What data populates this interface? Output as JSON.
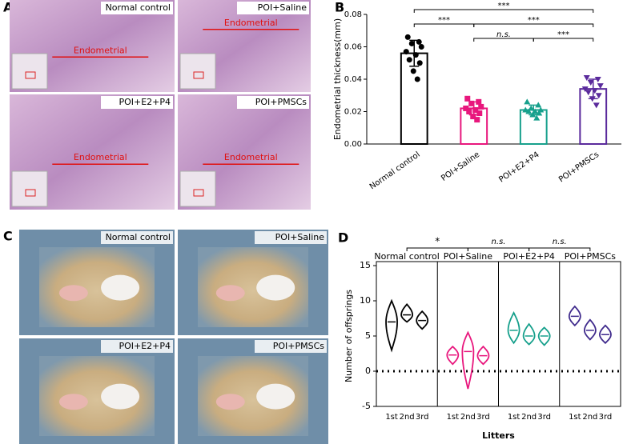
{
  "panels": {
    "A": {
      "label": "A",
      "images": [
        {
          "title": "Normal control",
          "annotation": "Endometrial"
        },
        {
          "title": "POI+Saline",
          "annotation": "Endometrial"
        },
        {
          "title": "POI+E2+P4",
          "annotation": "Endometrial"
        },
        {
          "title": "POI+PMSCs",
          "annotation": "Endometrial"
        }
      ]
    },
    "C": {
      "label": "C",
      "images": [
        {
          "title": "Normal control"
        },
        {
          "title": "POI+Saline"
        },
        {
          "title": "POI+E2+P4"
        },
        {
          "title": "POI+PMSCs"
        }
      ]
    }
  },
  "chart_data": [
    {
      "panel_label": "B",
      "type": "bar",
      "ylabel": "Endometrial thickness(mm)",
      "categories": [
        "Normal control",
        "POI+Saline",
        "POI+E2+P4",
        "POI+PMSCs"
      ],
      "values": [
        0.056,
        0.022,
        0.021,
        0.034
      ],
      "errors": [
        0.008,
        0.004,
        0.003,
        0.006
      ],
      "colors": [
        "#000000",
        "#e8177d",
        "#17a08c",
        "#5a2a9c"
      ],
      "markers": [
        "circle",
        "square",
        "triangle",
        "triangle-down"
      ],
      "points": [
        [
          0.066,
          0.063,
          0.062,
          0.06,
          0.057,
          0.055,
          0.052,
          0.05,
          0.045,
          0.04
        ],
        [
          0.028,
          0.026,
          0.025,
          0.023,
          0.022,
          0.021,
          0.02,
          0.019,
          0.017,
          0.015
        ],
        [
          0.026,
          0.024,
          0.022,
          0.021,
          0.021,
          0.02,
          0.02,
          0.019,
          0.018,
          0.016
        ],
        [
          0.041,
          0.04,
          0.038,
          0.036,
          0.034,
          0.033,
          0.032,
          0.03,
          0.028,
          0.024
        ]
      ],
      "ylim": [
        0,
        0.08
      ],
      "yticks": [
        {
          "value": 0,
          "label": "0.00"
        },
        {
          "value": 0.02,
          "label": "0.02"
        },
        {
          "value": 0.04,
          "label": "0.04"
        },
        {
          "value": 0.06,
          "label": "0.06"
        },
        {
          "value": 0.08,
          "label": "0.08"
        }
      ],
      "comparisons": [
        {
          "pair": [
            0,
            3
          ],
          "label": "***"
        },
        {
          "pair": [
            0,
            1
          ],
          "label": "***"
        },
        {
          "pair": [
            1,
            3
          ],
          "label": "***"
        },
        {
          "pair": [
            1,
            2
          ],
          "label": "n.s."
        },
        {
          "pair": [
            2,
            3
          ],
          "label": "***"
        }
      ]
    },
    {
      "panel_label": "D",
      "type": "violin",
      "ylabel": "Number of offsprings",
      "xlabel": "Litters",
      "litters": [
        "1st",
        "2nd",
        "3rd"
      ],
      "series": [
        {
          "name": "Normal control",
          "color": "#000000",
          "min": [
            3,
            7,
            6
          ],
          "median": [
            7,
            8,
            7.2
          ],
          "max": [
            10,
            9.5,
            8.5
          ]
        },
        {
          "name": "POI+Saline",
          "color": "#e8177d",
          "min": [
            1,
            -2.5,
            1
          ],
          "median": [
            2.3,
            2.8,
            2.2
          ],
          "max": [
            3.5,
            5.5,
            3.5
          ]
        },
        {
          "name": "POI+E2+P4",
          "color": "#17a08c",
          "min": [
            4,
            3.8,
            3.7
          ],
          "median": [
            5.8,
            5,
            5
          ],
          "max": [
            8.3,
            6.7,
            6.2
          ]
        },
        {
          "name": "POI+PMSCs",
          "color": "#3f2a8c",
          "min": [
            6.5,
            4.5,
            4
          ],
          "median": [
            7.8,
            5.8,
            5.2
          ],
          "max": [
            9.2,
            7.3,
            6.5
          ]
        }
      ],
      "ylim": [
        -5,
        15
      ],
      "yticks": [
        -5,
        0,
        5,
        10,
        15
      ],
      "reference_line": 0,
      "comparisons": [
        {
          "pair": [
            0,
            1
          ],
          "label": "*"
        },
        {
          "pair": [
            1,
            2
          ],
          "label": "n.s."
        },
        {
          "pair": [
            2,
            3
          ],
          "label": "n.s."
        }
      ]
    }
  ]
}
